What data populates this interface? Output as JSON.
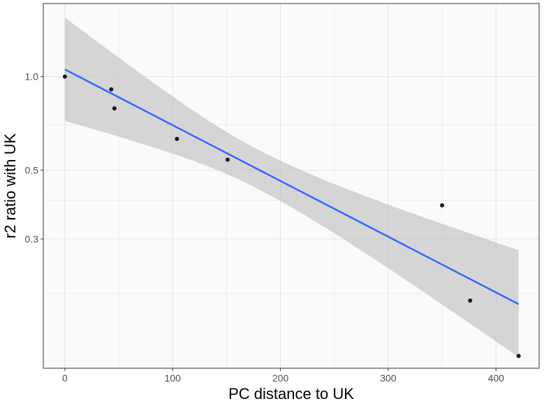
{
  "chart_data": {
    "type": "scatter",
    "xlabel": "PC distance to UK",
    "ylabel": "r2 ratio with UK",
    "y_scale": "log10",
    "xlim": [
      -20,
      440
    ],
    "ylim": [
      0.115,
      1.72
    ],
    "x_ticks": [
      0,
      100,
      200,
      300,
      400
    ],
    "x_tick_labels": [
      "0",
      "100",
      "200",
      "300",
      "400"
    ],
    "y_ticks": [
      1.0,
      0.5,
      0.3
    ],
    "y_tick_labels": [
      "1.0",
      "0.5",
      "0.3"
    ],
    "y_minor_gridlines": [
      0.7,
      0.4,
      0.2
    ],
    "grid": true,
    "points": [
      {
        "x": 0,
        "y": 1.0
      },
      {
        "x": 43,
        "y": 0.91
      },
      {
        "x": 46,
        "y": 0.79
      },
      {
        "x": 104,
        "y": 0.63
      },
      {
        "x": 151,
        "y": 0.54
      },
      {
        "x": 350,
        "y": 0.385
      },
      {
        "x": 376,
        "y": 0.19
      },
      {
        "x": 421,
        "y": 0.126
      }
    ],
    "fit": {
      "method": "linear on log10(y)",
      "x": [
        0,
        421
      ],
      "y": [
        1.055,
        0.185
      ],
      "ci_upper": [
        1.55,
        0.276
      ],
      "ci_lower": [
        0.72,
        0.125
      ]
    },
    "colors": {
      "panel_background": "#fafafa",
      "gridline": "#e6e6e6",
      "panel_border": "#333333",
      "point": "#1a1a1a",
      "fit_line": "#3366ff",
      "ribbon": "#bdbdbd"
    }
  }
}
